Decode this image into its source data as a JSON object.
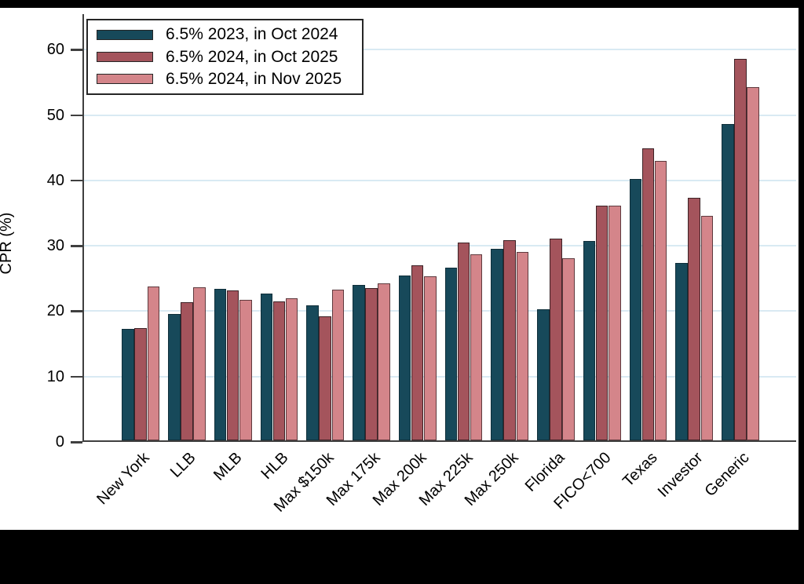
{
  "chart_data": {
    "type": "bar",
    "title": "",
    "xlabel": "",
    "ylabel": "CPR (%)",
    "ylim": [
      0,
      65
    ],
    "yticks": [
      0,
      10,
      20,
      30,
      40,
      50,
      60
    ],
    "grid": "horizontal",
    "legend_position": "top-left-inside",
    "categories": [
      "New York",
      "LLB",
      "MLB",
      "HLB",
      "Max $150k",
      "Max 175k",
      "Max 200k",
      "Max 225k",
      "Max 250k",
      "Florida",
      "FICO<700",
      "Texas",
      "Investor",
      "Generic"
    ],
    "series": [
      {
        "name": "6.5% 2023, in Oct 2024",
        "color": "#17495a",
        "edge": "#102f3a",
        "values": [
          17.1,
          19.3,
          23.2,
          22.4,
          20.6,
          23.8,
          25.2,
          26.4,
          29.3,
          20.1,
          30.5,
          40.0,
          27.1,
          48.4
        ]
      },
      {
        "name": "6.5% 2024, in Oct 2025",
        "color": "#a4545c",
        "edge": "#3d2226",
        "values": [
          17.2,
          21.1,
          22.9,
          21.3,
          19.0,
          23.3,
          26.8,
          30.2,
          30.6,
          30.9,
          35.9,
          44.7,
          37.1,
          58.3
        ]
      },
      {
        "name": "6.5% 2024, in Nov 2025",
        "color": "#d4858a",
        "edge": "#5e3a3e",
        "values": [
          23.5,
          23.4,
          21.5,
          21.7,
          23.0,
          24.0,
          25.1,
          28.4,
          28.8,
          27.9,
          35.9,
          42.7,
          34.3,
          54.0
        ]
      }
    ],
    "colors": {
      "gridline": "#d9eaf3",
      "axis": "#3f3f3f",
      "text": "#000000",
      "frame": "#000000",
      "background": "#ffffff"
    }
  }
}
